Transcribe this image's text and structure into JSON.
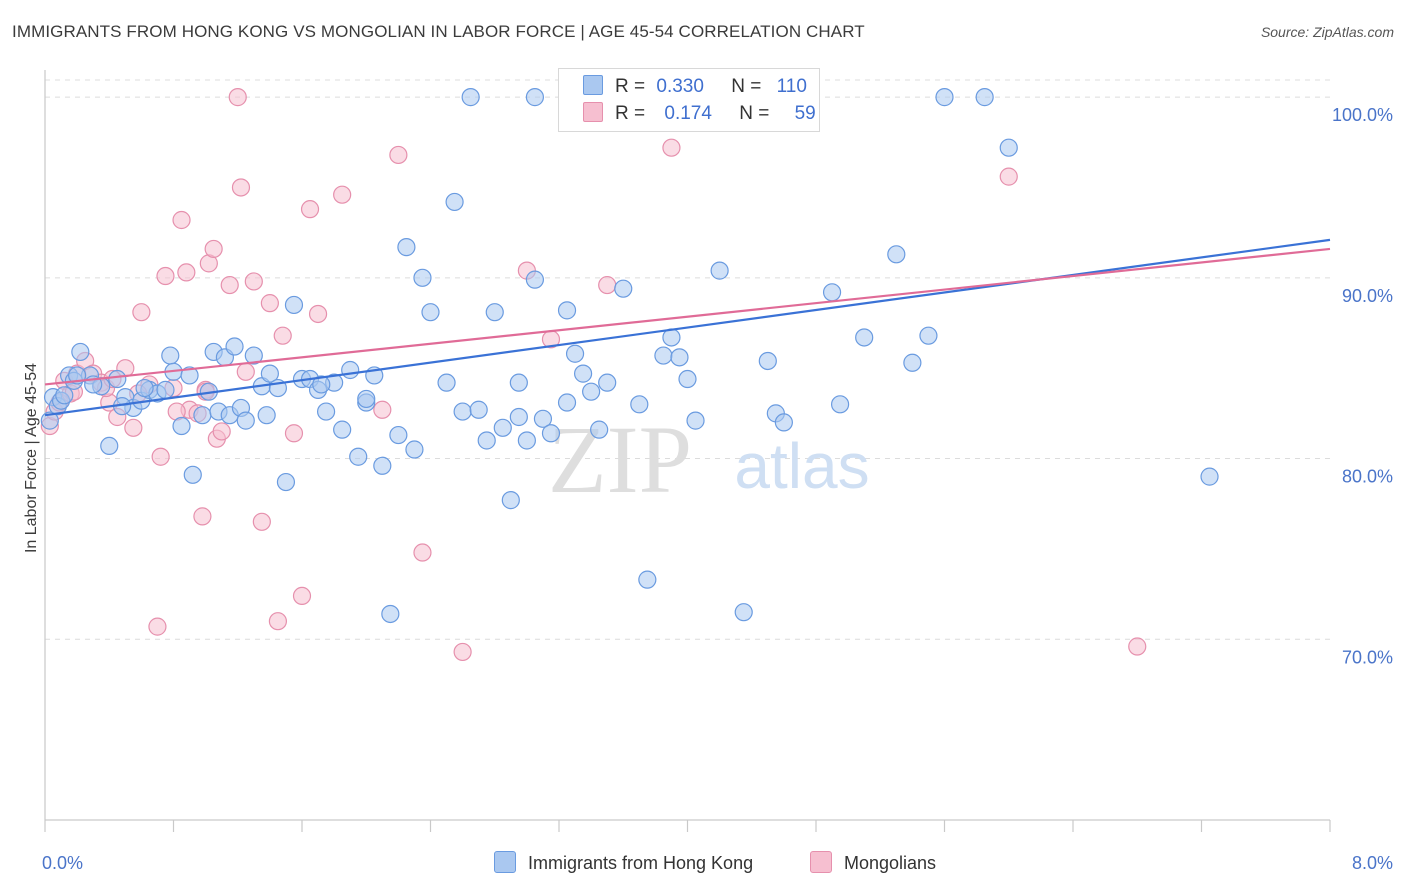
{
  "title": "IMMIGRANTS FROM HONG KONG VS MONGOLIAN IN LABOR FORCE | AGE 45-54 CORRELATION CHART",
  "source": "Source: ZipAtlas.com",
  "watermark": {
    "zip": "ZIP",
    "atlas": "atlas"
  },
  "colors": {
    "blue_fill": "#aac8f0",
    "blue_stroke": "#6a9be0",
    "blue_line": "#3a72d6",
    "pink_fill": "#f6bfd0",
    "pink_stroke": "#e690ad",
    "pink_line": "#e06b97",
    "tick_text": "#4a74c9"
  },
  "legend": {
    "rows": [
      {
        "r_label": "R =",
        "r_value": "0.330",
        "n_label": "N =",
        "n_value": "110"
      },
      {
        "r_label": "R =",
        "r_value": "0.174",
        "n_label": "N =",
        "n_value": "59"
      }
    ]
  },
  "bottom_legend": [
    "Immigrants from Hong Kong",
    "Mongolians"
  ],
  "chart_data": {
    "type": "scatter",
    "ylabel": "In Labor Force | Age 45-54",
    "xlim": [
      0,
      8
    ],
    "ylim": [
      60,
      101.5
    ],
    "x_tick_labels": [
      "0.0%",
      "8.0%"
    ],
    "y_ticks": [
      70,
      80,
      90,
      100
    ],
    "y_tick_labels": [
      "70.0%",
      "80.0%",
      "90.0%",
      "100.0%"
    ],
    "grid": true,
    "series": [
      {
        "name": "Immigrants from Hong Kong",
        "trend": [
          [
            0.0,
            82.4
          ],
          [
            8.0,
            92.1
          ]
        ],
        "points": [
          [
            0.03,
            82.1
          ],
          [
            0.05,
            83.4
          ],
          [
            0.08,
            82.9
          ],
          [
            0.1,
            83.2
          ],
          [
            0.15,
            84.6
          ],
          [
            0.18,
            84.3
          ],
          [
            0.22,
            85.9
          ],
          [
            0.28,
            84.6
          ],
          [
            0.35,
            84.0
          ],
          [
            0.4,
            80.7
          ],
          [
            0.45,
            84.4
          ],
          [
            0.5,
            83.4
          ],
          [
            0.55,
            82.8
          ],
          [
            0.6,
            83.2
          ],
          [
            0.65,
            83.8
          ],
          [
            0.7,
            83.6
          ],
          [
            0.75,
            83.8
          ],
          [
            0.78,
            85.7
          ],
          [
            0.8,
            84.8
          ],
          [
            0.85,
            81.8
          ],
          [
            0.9,
            84.6
          ],
          [
            0.92,
            79.1
          ],
          [
            0.98,
            82.4
          ],
          [
            1.05,
            85.9
          ],
          [
            1.08,
            82.6
          ],
          [
            1.12,
            85.6
          ],
          [
            1.15,
            82.4
          ],
          [
            1.18,
            86.2
          ],
          [
            1.22,
            82.8
          ],
          [
            1.25,
            82.1
          ],
          [
            1.3,
            85.7
          ],
          [
            1.35,
            84.0
          ],
          [
            1.4,
            84.7
          ],
          [
            1.45,
            83.9
          ],
          [
            1.5,
            78.7
          ],
          [
            1.55,
            88.5
          ],
          [
            1.6,
            84.4
          ],
          [
            1.65,
            84.4
          ],
          [
            1.7,
            83.8
          ],
          [
            1.75,
            82.6
          ],
          [
            1.8,
            84.2
          ],
          [
            1.85,
            81.6
          ],
          [
            1.9,
            84.9
          ],
          [
            1.95,
            80.1
          ],
          [
            2.0,
            83.1
          ],
          [
            2.05,
            84.6
          ],
          [
            2.1,
            79.6
          ],
          [
            2.15,
            71.4
          ],
          [
            2.2,
            81.3
          ],
          [
            2.25,
            91.7
          ],
          [
            2.3,
            80.5
          ],
          [
            2.35,
            90.0
          ],
          [
            2.4,
            88.1
          ],
          [
            2.5,
            84.2
          ],
          [
            2.55,
            94.2
          ],
          [
            2.6,
            82.6
          ],
          [
            2.65,
            100.0
          ],
          [
            2.7,
            82.7
          ],
          [
            2.75,
            81.0
          ],
          [
            2.8,
            88.1
          ],
          [
            2.85,
            81.7
          ],
          [
            2.9,
            77.7
          ],
          [
            2.95,
            82.3
          ],
          [
            3.0,
            81.0
          ],
          [
            3.05,
            89.9
          ],
          [
            3.1,
            82.2
          ],
          [
            3.15,
            81.4
          ],
          [
            3.25,
            83.1
          ],
          [
            3.3,
            85.8
          ],
          [
            3.35,
            84.7
          ],
          [
            3.4,
            83.7
          ],
          [
            3.45,
            81.6
          ],
          [
            3.5,
            84.2
          ],
          [
            3.6,
            89.4
          ],
          [
            3.7,
            83.0
          ],
          [
            3.75,
            73.3
          ],
          [
            3.85,
            85.7
          ],
          [
            3.9,
            86.7
          ],
          [
            3.95,
            85.6
          ],
          [
            4.0,
            84.4
          ],
          [
            4.05,
            82.1
          ],
          [
            4.2,
            90.4
          ],
          [
            4.35,
            71.5
          ],
          [
            4.5,
            85.4
          ],
          [
            4.55,
            82.5
          ],
          [
            4.6,
            82.0
          ],
          [
            4.9,
            89.2
          ],
          [
            4.95,
            83.0
          ],
          [
            5.1,
            86.7
          ],
          [
            5.3,
            91.3
          ],
          [
            5.4,
            85.3
          ],
          [
            5.5,
            86.8
          ],
          [
            5.6,
            100.0
          ],
          [
            5.85,
            100.0
          ],
          [
            6.0,
            97.2
          ],
          [
            7.25,
            79.0
          ],
          [
            3.05,
            100.0
          ],
          [
            0.12,
            83.5
          ],
          [
            0.2,
            84.6
          ],
          [
            0.3,
            84.1
          ],
          [
            0.48,
            82.9
          ],
          [
            0.62,
            83.9
          ],
          [
            1.02,
            83.7
          ],
          [
            1.38,
            82.4
          ],
          [
            1.72,
            84.1
          ],
          [
            2.0,
            83.3
          ],
          [
            2.95,
            84.2
          ],
          [
            3.25,
            88.2
          ]
        ]
      },
      {
        "name": "Mongolians",
        "trend": [
          [
            0.0,
            84.1
          ],
          [
            8.0,
            91.6
          ]
        ],
        "points": [
          [
            0.03,
            81.8
          ],
          [
            0.06,
            82.6
          ],
          [
            0.09,
            83.1
          ],
          [
            0.12,
            84.3
          ],
          [
            0.16,
            83.6
          ],
          [
            0.2,
            84.7
          ],
          [
            0.25,
            85.4
          ],
          [
            0.3,
            84.7
          ],
          [
            0.35,
            84.2
          ],
          [
            0.4,
            83.1
          ],
          [
            0.45,
            82.3
          ],
          [
            0.5,
            85.0
          ],
          [
            0.55,
            81.7
          ],
          [
            0.6,
            88.1
          ],
          [
            0.65,
            84.1
          ],
          [
            0.7,
            70.7
          ],
          [
            0.72,
            80.1
          ],
          [
            0.75,
            90.1
          ],
          [
            0.8,
            83.9
          ],
          [
            0.85,
            93.2
          ],
          [
            0.88,
            90.3
          ],
          [
            0.9,
            82.7
          ],
          [
            0.95,
            82.5
          ],
          [
            0.98,
            76.8
          ],
          [
            1.0,
            83.8
          ],
          [
            1.02,
            90.8
          ],
          [
            1.05,
            91.6
          ],
          [
            1.07,
            81.1
          ],
          [
            1.1,
            81.5
          ],
          [
            1.15,
            89.6
          ],
          [
            1.2,
            100.0
          ],
          [
            1.22,
            95.0
          ],
          [
            1.25,
            84.8
          ],
          [
            1.3,
            89.8
          ],
          [
            1.35,
            76.5
          ],
          [
            1.4,
            88.6
          ],
          [
            1.45,
            71.0
          ],
          [
            1.48,
            86.8
          ],
          [
            1.55,
            81.4
          ],
          [
            1.6,
            72.4
          ],
          [
            1.65,
            93.8
          ],
          [
            1.7,
            88.0
          ],
          [
            1.85,
            94.6
          ],
          [
            2.1,
            82.7
          ],
          [
            2.2,
            96.8
          ],
          [
            2.35,
            74.8
          ],
          [
            2.6,
            69.3
          ],
          [
            3.0,
            90.4
          ],
          [
            3.15,
            86.6
          ],
          [
            3.5,
            89.6
          ],
          [
            3.9,
            97.2
          ],
          [
            6.0,
            95.6
          ],
          [
            6.8,
            69.6
          ],
          [
            0.18,
            83.7
          ],
          [
            0.38,
            83.9
          ],
          [
            0.58,
            83.6
          ],
          [
            0.82,
            82.6
          ],
          [
            1.0,
            83.7
          ],
          [
            0.42,
            84.4
          ]
        ]
      }
    ]
  }
}
